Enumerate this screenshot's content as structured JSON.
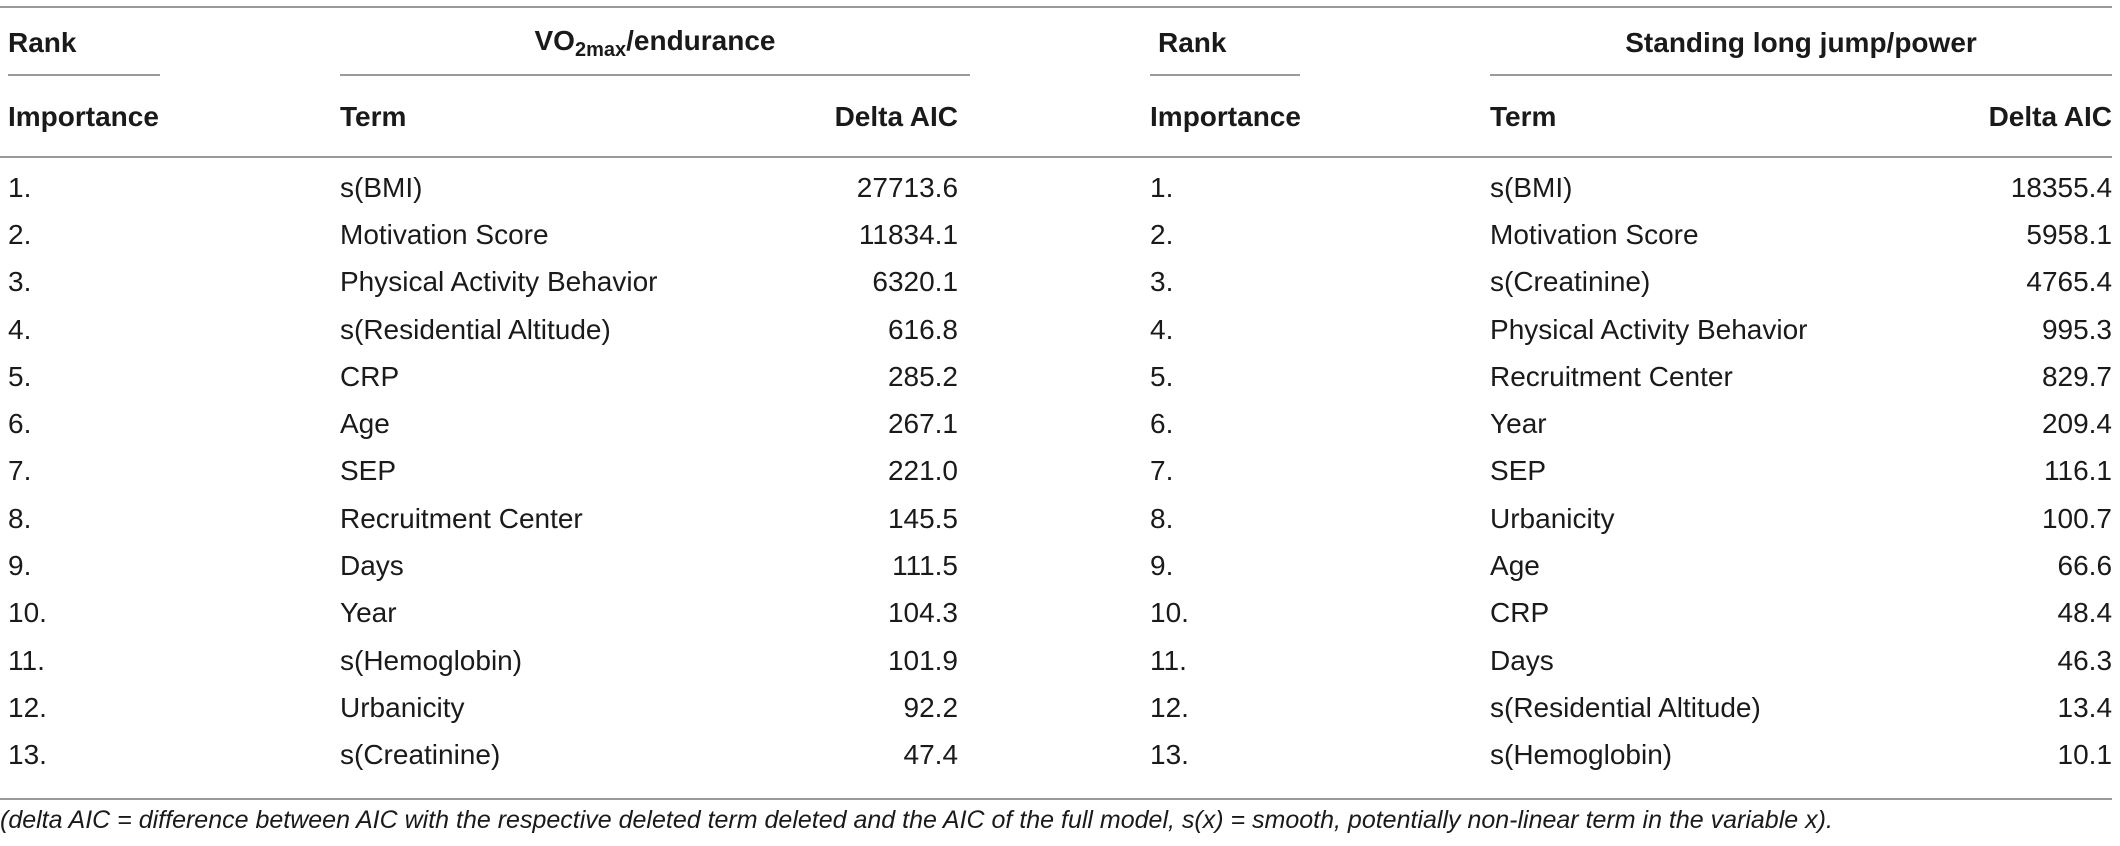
{
  "header": {
    "rank_label": "Rank",
    "importance_label": "Importance",
    "term_label": "Term",
    "delta_label": "Delta AIC",
    "group_left_prefix": "VO",
    "group_left_sub": "2max",
    "group_left_suffix": "/endurance",
    "group_right": "Standing long jump/power"
  },
  "rows": [
    {
      "rank": "1.",
      "term_left": "s(BMI)",
      "delta_left": "27713.6",
      "term_right": "s(BMI)",
      "delta_right": "18355.4"
    },
    {
      "rank": "2.",
      "term_left": "Motivation Score",
      "delta_left": "11834.1",
      "term_right": "Motivation Score",
      "delta_right": "5958.1"
    },
    {
      "rank": "3.",
      "term_left": "Physical Activity Behavior",
      "delta_left": "6320.1",
      "term_right": "s(Creatinine)",
      "delta_right": "4765.4"
    },
    {
      "rank": "4.",
      "term_left": "s(Residential Altitude)",
      "delta_left": "616.8",
      "term_right": "Physical Activity Behavior",
      "delta_right": "995.3"
    },
    {
      "rank": "5.",
      "term_left": "CRP",
      "delta_left": "285.2",
      "term_right": "Recruitment Center",
      "delta_right": "829.7"
    },
    {
      "rank": "6.",
      "term_left": "Age",
      "delta_left": "267.1",
      "term_right": "Year",
      "delta_right": "209.4"
    },
    {
      "rank": "7.",
      "term_left": "SEP",
      "delta_left": "221.0",
      "term_right": "SEP",
      "delta_right": "116.1"
    },
    {
      "rank": "8.",
      "term_left": "Recruitment Center",
      "delta_left": "145.5",
      "term_right": "Urbanicity",
      "delta_right": "100.7"
    },
    {
      "rank": "9.",
      "term_left": "Days",
      "delta_left": "111.5",
      "term_right": "Age",
      "delta_right": "66.6"
    },
    {
      "rank": "10.",
      "term_left": "Year",
      "delta_left": "104.3",
      "term_right": "CRP",
      "delta_right": "48.4"
    },
    {
      "rank": "11.",
      "term_left": "s(Hemoglobin)",
      "delta_left": "101.9",
      "term_right": "Days",
      "delta_right": "46.3"
    },
    {
      "rank": "12.",
      "term_left": "Urbanicity",
      "delta_left": "92.2",
      "term_right": "s(Residential Altitude)",
      "delta_right": "13.4"
    },
    {
      "rank": "13.",
      "term_left": "s(Creatinine)",
      "delta_left": "47.4",
      "term_right": "s(Hemoglobin)",
      "delta_right": "10.1"
    }
  ],
  "caption": "(delta AIC = difference between AIC with the respective deleted term deleted and the AIC of the full model, s(x) = smooth, potentially non-linear term in the variable x)."
}
